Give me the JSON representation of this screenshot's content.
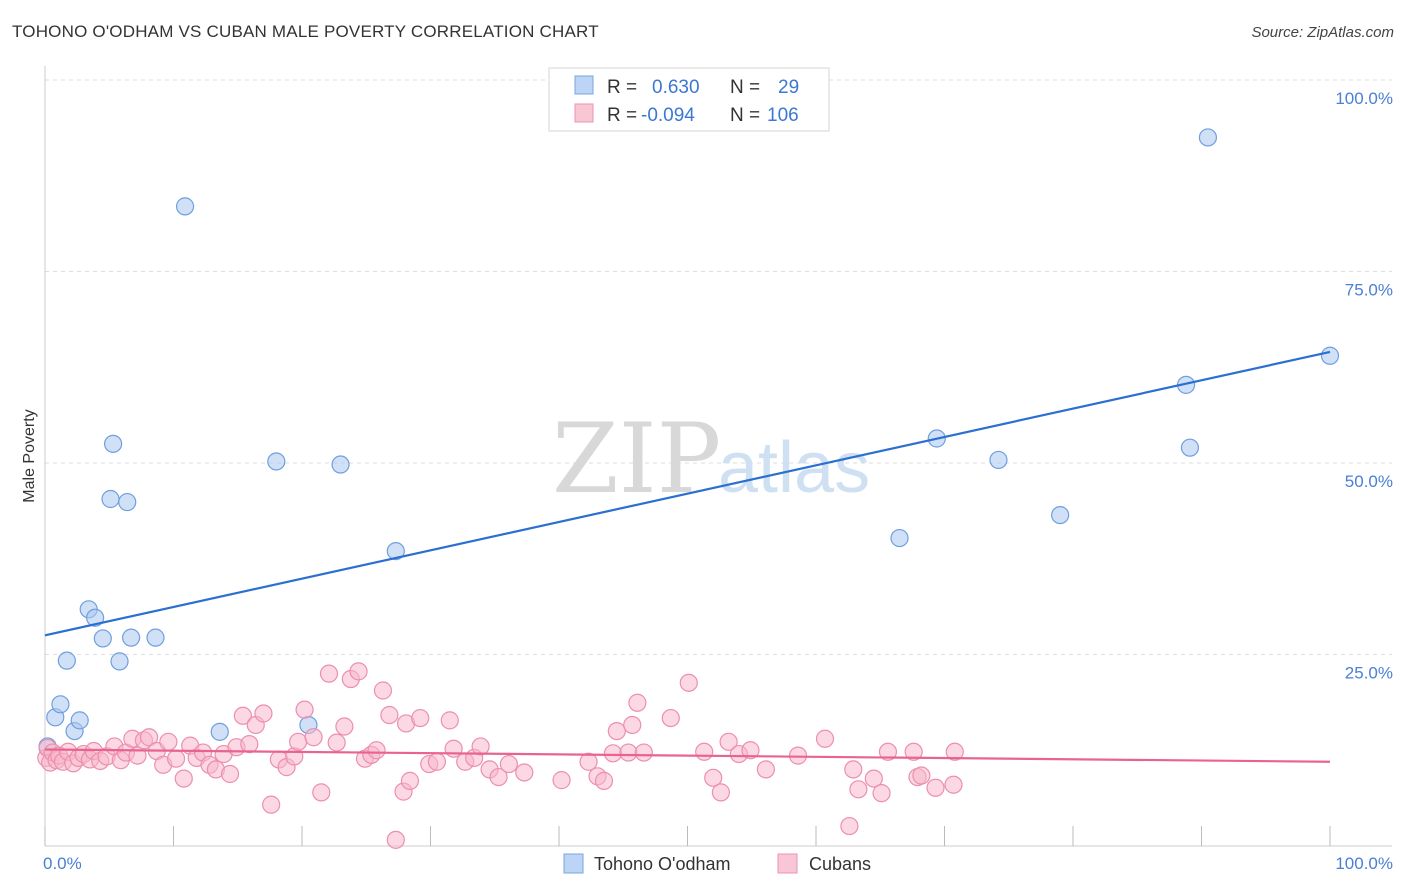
{
  "chart_data": {
    "type": "scatter",
    "title": "TOHONO O'ODHAM VS CUBAN MALE POVERTY CORRELATION CHART",
    "source": "Source: ZipAtlas.com",
    "xlabel": "",
    "ylabel": "Male Poverty",
    "xlim": [
      0,
      100
    ],
    "ylim": [
      0,
      100
    ],
    "x_tick_labels": [
      "0.0%",
      "100.0%"
    ],
    "y_tick_labels": [
      {
        "value": 25,
        "label": "25.0%"
      },
      {
        "value": 50,
        "label": "50.0%"
      },
      {
        "value": 75,
        "label": "75.0%"
      },
      {
        "value": 100,
        "label": "100.0%"
      }
    ],
    "watermark": {
      "zip": "ZIP",
      "atlas": "atlas"
    },
    "legend": {
      "rows": [
        {
          "r_label": "R =",
          "r_value": "0.630",
          "n_label": "N =",
          "n_value": "29"
        },
        {
          "r_label": "R =",
          "r_value": "-0.094",
          "n_label": "N =",
          "n_value": "106"
        }
      ]
    },
    "series": [
      {
        "name": "Tohono O'odham",
        "color": "#a9c8f0",
        "stroke": "#6f9fdd",
        "trend_color": "#2b6fd1",
        "trend": {
          "x0": 0,
          "y0": 27.5,
          "x1": 100,
          "y1": 64.5
        },
        "points": [
          [
            0.2,
            13.0
          ],
          [
            0.8,
            16.8
          ],
          [
            1.2,
            18.5
          ],
          [
            1.7,
            24.2
          ],
          [
            2.3,
            15.0
          ],
          [
            2.7,
            16.4
          ],
          [
            3.4,
            30.9
          ],
          [
            3.9,
            29.8
          ],
          [
            4.5,
            27.1
          ],
          [
            5.1,
            45.3
          ],
          [
            5.3,
            52.5
          ],
          [
            5.8,
            24.1
          ],
          [
            6.4,
            44.9
          ],
          [
            6.7,
            27.2
          ],
          [
            8.6,
            27.2
          ],
          [
            10.9,
            83.5
          ],
          [
            13.6,
            14.9
          ],
          [
            18.0,
            50.2
          ],
          [
            20.5,
            15.8
          ],
          [
            23.0,
            49.8
          ],
          [
            27.3,
            38.5
          ],
          [
            66.5,
            40.2
          ],
          [
            69.4,
            53.2
          ],
          [
            74.2,
            50.4
          ],
          [
            79.0,
            43.2
          ],
          [
            88.8,
            60.2
          ],
          [
            89.1,
            52.0
          ],
          [
            90.5,
            92.5
          ],
          [
            100.0,
            64.0
          ]
        ]
      },
      {
        "name": "Cubans",
        "color": "#f7b8cc",
        "stroke": "#ec8fae",
        "trend_color": "#e8648f",
        "trend": {
          "x0": 0,
          "y0": 12.6,
          "x1": 100,
          "y1": 11.0
        },
        "points": [
          [
            0.1,
            11.5
          ],
          [
            0.2,
            12.8
          ],
          [
            0.4,
            10.9
          ],
          [
            0.6,
            12.2
          ],
          [
            0.9,
            11.2
          ],
          [
            1.1,
            11.8
          ],
          [
            1.4,
            11.0
          ],
          [
            1.8,
            12.3
          ],
          [
            2.2,
            10.8
          ],
          [
            2.6,
            11.5
          ],
          [
            3.0,
            12.0
          ],
          [
            3.5,
            11.3
          ],
          [
            3.8,
            12.4
          ],
          [
            4.3,
            11.1
          ],
          [
            4.8,
            11.7
          ],
          [
            5.4,
            13.0
          ],
          [
            5.9,
            11.2
          ],
          [
            6.3,
            12.2
          ],
          [
            6.8,
            14.0
          ],
          [
            7.2,
            11.8
          ],
          [
            7.7,
            13.8
          ],
          [
            8.1,
            14.2
          ],
          [
            8.7,
            12.4
          ],
          [
            9.2,
            10.6
          ],
          [
            9.6,
            13.6
          ],
          [
            10.2,
            11.4
          ],
          [
            10.8,
            8.8
          ],
          [
            11.3,
            13.1
          ],
          [
            11.8,
            11.5
          ],
          [
            12.3,
            12.2
          ],
          [
            12.8,
            10.6
          ],
          [
            13.3,
            10.0
          ],
          [
            13.9,
            12.0
          ],
          [
            14.4,
            9.4
          ],
          [
            14.9,
            12.9
          ],
          [
            15.4,
            17.0
          ],
          [
            15.9,
            13.3
          ],
          [
            16.4,
            15.8
          ],
          [
            17.0,
            17.3
          ],
          [
            17.6,
            5.4
          ],
          [
            18.2,
            11.3
          ],
          [
            18.8,
            10.3
          ],
          [
            19.4,
            11.7
          ],
          [
            19.7,
            13.6
          ],
          [
            20.2,
            17.8
          ],
          [
            20.9,
            14.2
          ],
          [
            21.5,
            7.0
          ],
          [
            22.1,
            22.5
          ],
          [
            22.7,
            13.5
          ],
          [
            23.3,
            15.6
          ],
          [
            23.8,
            21.8
          ],
          [
            24.4,
            22.8
          ],
          [
            24.9,
            11.4
          ],
          [
            25.4,
            11.9
          ],
          [
            25.8,
            12.5
          ],
          [
            26.3,
            20.3
          ],
          [
            26.8,
            17.1
          ],
          [
            27.3,
            0.8
          ],
          [
            27.9,
            7.1
          ],
          [
            28.4,
            8.5
          ],
          [
            28.1,
            16.0
          ],
          [
            29.2,
            16.7
          ],
          [
            29.9,
            10.7
          ],
          [
            30.5,
            11.0
          ],
          [
            31.5,
            16.4
          ],
          [
            31.8,
            12.7
          ],
          [
            32.7,
            11.0
          ],
          [
            33.4,
            11.5
          ],
          [
            33.9,
            13.0
          ],
          [
            34.6,
            10.0
          ],
          [
            35.3,
            9.0
          ],
          [
            36.1,
            10.7
          ],
          [
            37.3,
            9.6
          ],
          [
            40.2,
            8.6
          ],
          [
            42.3,
            11.0
          ],
          [
            43.0,
            9.1
          ],
          [
            43.5,
            8.5
          ],
          [
            44.2,
            12.1
          ],
          [
            44.5,
            15.0
          ],
          [
            45.4,
            12.2
          ],
          [
            45.7,
            15.8
          ],
          [
            46.1,
            18.7
          ],
          [
            46.6,
            12.2
          ],
          [
            48.7,
            16.7
          ],
          [
            50.1,
            21.3
          ],
          [
            51.3,
            12.3
          ],
          [
            52.0,
            8.9
          ],
          [
            52.6,
            7.0
          ],
          [
            53.2,
            13.6
          ],
          [
            54.0,
            12.0
          ],
          [
            54.9,
            12.5
          ],
          [
            56.1,
            10.0
          ],
          [
            58.6,
            11.8
          ],
          [
            60.7,
            14.0
          ],
          [
            62.9,
            10.0
          ],
          [
            62.6,
            2.6
          ],
          [
            63.3,
            7.4
          ],
          [
            64.5,
            8.8
          ],
          [
            65.1,
            6.9
          ],
          [
            65.6,
            12.3
          ],
          [
            67.6,
            12.3
          ],
          [
            67.9,
            9.0
          ],
          [
            68.2,
            9.2
          ],
          [
            69.3,
            7.6
          ],
          [
            70.7,
            8.0
          ],
          [
            70.8,
            12.3
          ]
        ]
      }
    ]
  },
  "legend_bottom": [
    {
      "label": "Tohono O'odham"
    },
    {
      "label": "Cubans"
    }
  ]
}
